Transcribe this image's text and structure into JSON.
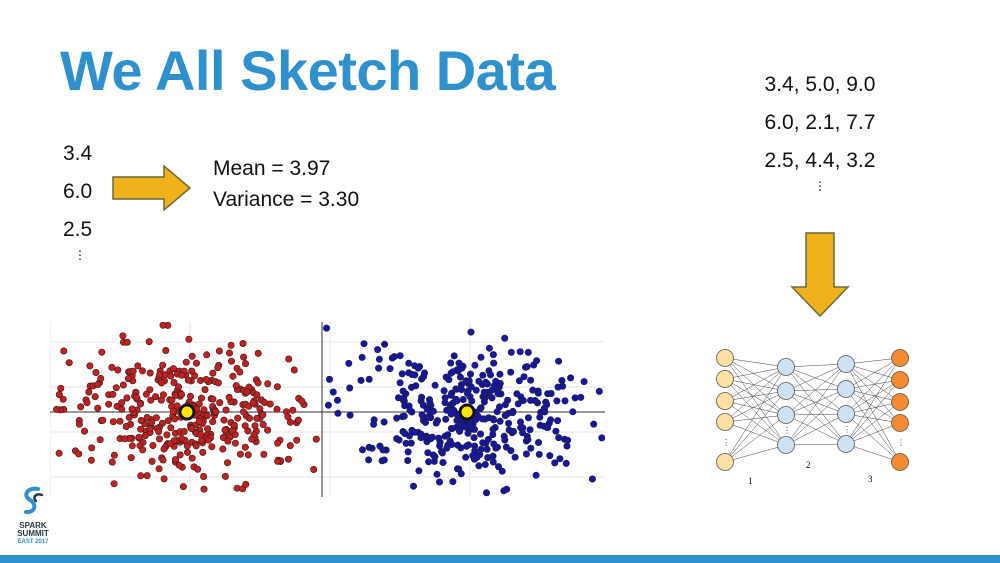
{
  "slide": {
    "title": "We All Sketch Data",
    "values": [
      "3.4",
      "6.0",
      "2.5"
    ],
    "ellipsis": "⋮",
    "mean": "Mean = 3.97",
    "variance": "Variance = 3.30",
    "vectors": [
      "3.4, 5.0, 9.0",
      "6.0, 2.1, 7.7",
      "2.5, 4.4, 3.2"
    ],
    "vector_ellipsis": "⋮"
  },
  "nn": {
    "labels": [
      "1",
      "2",
      "3"
    ],
    "layer_colors": [
      "#ffe0a3",
      "#cfe2f3",
      "#cfe2f3",
      "#f58a32"
    ]
  },
  "scatter": {
    "cluster_colors": [
      "#c81e1e",
      "#1515a8"
    ],
    "centroid_color": "#ffe600"
  },
  "logo": {
    "line1": "SPARK",
    "line2": "SUMMIT",
    "line3": "EAST 2017"
  },
  "colors": {
    "title": "#2e90cd",
    "arrow": "#f0b21a",
    "bar": "#2e90cd"
  }
}
